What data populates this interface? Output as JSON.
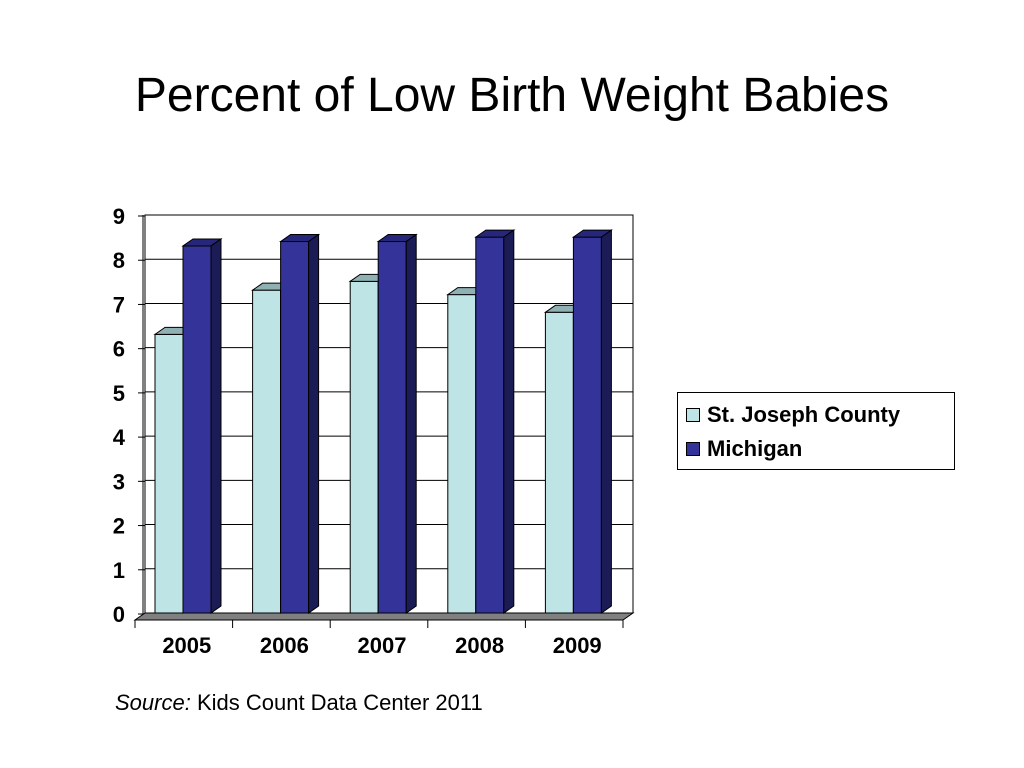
{
  "slide": {
    "title": "Percent of Low Birth Weight Babies"
  },
  "source": {
    "label": "Source:",
    "text": " Kids Count Data Center 2011"
  },
  "colors": {
    "st_joseph": "#bfe4e6",
    "st_joseph_top": "#8fb1b3",
    "st_joseph_side": "#6e9294",
    "michigan": "#33339a",
    "michigan_top": "#26267a",
    "michigan_side": "#1b1b55",
    "floor": "#808080"
  },
  "chart_data": {
    "type": "bar",
    "title": "",
    "xlabel": "",
    "ylabel": "",
    "categories": [
      "2005",
      "2006",
      "2007",
      "2008",
      "2009"
    ],
    "series": [
      {
        "name": "St. Joseph County",
        "values": [
          6.3,
          7.3,
          7.5,
          7.2,
          6.8
        ]
      },
      {
        "name": "Michigan",
        "values": [
          8.3,
          8.4,
          8.4,
          8.5,
          8.5
        ]
      }
    ],
    "ylim": [
      0,
      9
    ],
    "yticks": [
      "0",
      "1",
      "2",
      "3",
      "4",
      "5",
      "6",
      "7",
      "8",
      "9"
    ],
    "grid": true,
    "legend_position": "right",
    "style": "3d-clustered-column"
  }
}
